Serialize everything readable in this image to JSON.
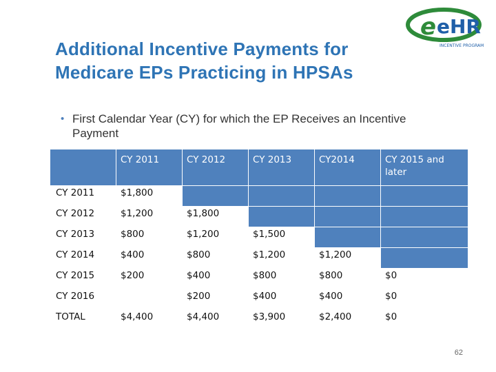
{
  "title_line1": "Additional Incentive Payments for",
  "title_line2": "Medicare EPs Practicing in HPSAs",
  "logo": {
    "text_main": "eHR",
    "text_sub": "INCENTIVE PROGRAM",
    "colors": [
      "#2e8b3a",
      "#1f5fa8"
    ]
  },
  "bullet": {
    "text": "First Calendar Year (CY) for which the EP Receives an Incentive Payment"
  },
  "table": {
    "headers": [
      "",
      "CY 2011",
      "CY 2012",
      "CY 2013",
      "CY2014",
      "CY 2015 and later"
    ],
    "rows": [
      {
        "label": "CY 2011",
        "cells": [
          "$1,800",
          null,
          null,
          null,
          null
        ]
      },
      {
        "label": "CY 2012",
        "cells": [
          "$1,200",
          "$1,800",
          null,
          null,
          null
        ]
      },
      {
        "label": "CY 2013",
        "cells": [
          "$800",
          "$1,200",
          "$1,500",
          null,
          null
        ]
      },
      {
        "label": "CY 2014",
        "cells": [
          "$400",
          "$800",
          "$1,200",
          "$1,200",
          null
        ]
      },
      {
        "label": "CY 2015",
        "cells": [
          "$200",
          "$400",
          "$800",
          "$800",
          "$0"
        ]
      },
      {
        "label": "CY 2016",
        "cells": [
          "",
          "$200",
          "$400",
          "$400",
          "$0"
        ]
      },
      {
        "label": "TOTAL",
        "cells": [
          "$4,400",
          "$4,400",
          "$3,900",
          "$2,400",
          "$0"
        ]
      }
    ],
    "header_color": "#4f81bd"
  },
  "page_number": "62"
}
